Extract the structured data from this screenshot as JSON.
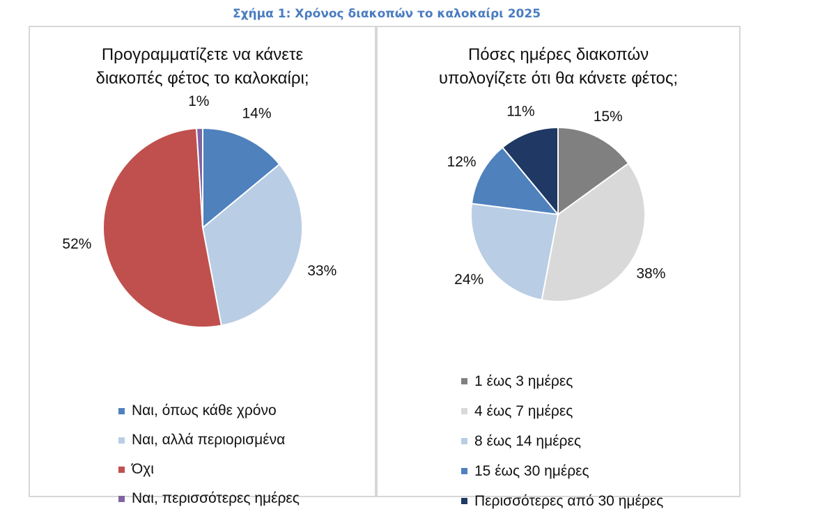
{
  "figure": {
    "title": "Σχήμα 1: Χρόνος διακοπών το καλοκαίρι 2025"
  },
  "chart_data": [
    {
      "type": "pie",
      "title": "Προγραμματίζετε να κάνετε διακοπές φέτος το καλοκαίρι;",
      "title_lines": [
        "Προγραμματίζετε να κάνετε",
        "διακοπές φέτος το καλοκαίρι;"
      ],
      "start_angle_deg": 0,
      "direction": "clockwise",
      "slices": [
        {
          "label": "Ναι, όπως κάθε χρόνο",
          "value": 14,
          "display": "14%",
          "color": "#4f81bd"
        },
        {
          "label": "Ναι, αλλά περιορισμένα",
          "value": 33,
          "display": "33%",
          "color": "#b9cde5"
        },
        {
          "label": "Όχι",
          "value": 52,
          "display": "52%",
          "color": "#c0504d"
        },
        {
          "label": "Ναι, περισσότερες ημέρες",
          "value": 1,
          "display": "1%",
          "color": "#8064a2"
        }
      ],
      "legend_position": "bottom"
    },
    {
      "type": "pie",
      "title": "Πόσες ημέρες διακοπών υπολογίζετε ότι θα κάνετε φέτος;",
      "title_lines": [
        "Πόσες ημέρες διακοπών",
        "υπολογίζετε ότι θα κάνετε φέτος;"
      ],
      "start_angle_deg": 0,
      "direction": "clockwise",
      "slices": [
        {
          "label": "1 έως 3 ημέρες",
          "value": 15,
          "display": "15%",
          "color": "#808080"
        },
        {
          "label": "4 έως 7 ημέρες",
          "value": 38,
          "display": "38%",
          "color": "#d9d9d9"
        },
        {
          "label": "8 έως 14 ημέρες",
          "value": 24,
          "display": "24%",
          "color": "#b9cde5"
        },
        {
          "label": "15 έως 30 ημέρες",
          "value": 12,
          "display": "12%",
          "color": "#4f81bd"
        },
        {
          "label": "Περισσότερες από 30 ημέρες",
          "value": 11,
          "display": "11%",
          "color": "#1f3864"
        }
      ],
      "legend_position": "bottom"
    }
  ]
}
